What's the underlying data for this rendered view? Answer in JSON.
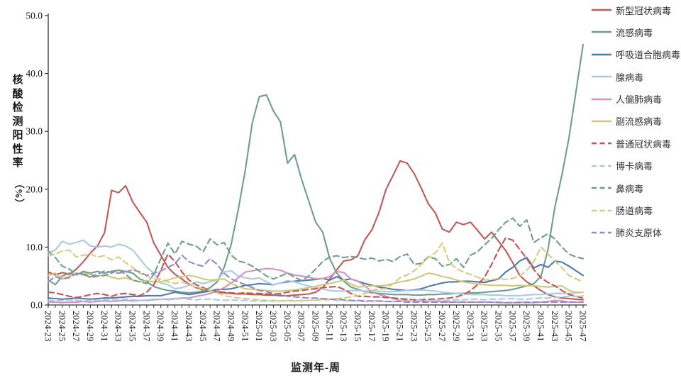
{
  "chart": {
    "ylabel_main": "核酸检测阳性率",
    "ylabel_unit": "（%）"
  },
  "chart_data": {
    "type": "line",
    "title": "",
    "xlabel": "监测年-周",
    "ylabel": "核酸检测阳性率（%）",
    "ylim": [
      0,
      50
    ],
    "yticks": [
      0,
      10,
      20,
      30,
      40,
      50
    ],
    "ytick_format": "one-decimal",
    "x_label_every": 2,
    "grid": false,
    "legend_position": "right",
    "x": [
      "2024-23",
      "2024-24",
      "2024-25",
      "2024-26",
      "2024-27",
      "2024-28",
      "2024-29",
      "2024-30",
      "2024-31",
      "2024-32",
      "2024-33",
      "2024-34",
      "2024-35",
      "2024-36",
      "2024-37",
      "2024-38",
      "2024-39",
      "2024-40",
      "2024-41",
      "2024-42",
      "2024-43",
      "2024-44",
      "2024-45",
      "2024-46",
      "2024-47",
      "2024-48",
      "2024-49",
      "2024-50",
      "2024-51",
      "2024-52",
      "2025-01",
      "2025-02",
      "2025-03",
      "2025-04",
      "2025-05",
      "2025-06",
      "2025-07",
      "2025-08",
      "2025-09",
      "2025-10",
      "2025-11",
      "2025-12",
      "2025-13",
      "2025-14",
      "2025-15",
      "2025-16",
      "2025-17",
      "2025-18",
      "2025-19",
      "2025-20",
      "2025-21",
      "2025-22",
      "2025-23",
      "2025-24",
      "2025-25",
      "2025-26",
      "2025-27",
      "2025-28",
      "2025-29",
      "2025-30",
      "2025-31",
      "2025-32",
      "2025-33",
      "2025-34",
      "2025-35",
      "2025-36",
      "2025-37",
      "2025-38",
      "2025-39",
      "2025-40",
      "2025-41",
      "2025-42",
      "2025-43",
      "2025-44",
      "2025-45",
      "2025-46",
      "2025-47"
    ],
    "series": [
      {
        "name": "新型冠状病毒",
        "color": "#C05A58",
        "dash": false,
        "values": [
          5.7,
          5.2,
          5.6,
          5.3,
          6.2,
          7.5,
          9.0,
          10.2,
          12.5,
          19.8,
          19.4,
          20.6,
          17.8,
          16.0,
          14.3,
          10.7,
          8.6,
          6.5,
          5.3,
          4.5,
          3.6,
          3.0,
          2.6,
          2.4,
          2.2,
          2.1,
          2.0,
          1.9,
          1.9,
          1.8,
          1.8,
          1.7,
          1.7,
          1.6,
          1.6,
          1.7,
          1.8,
          1.9,
          2.2,
          3.0,
          4.5,
          6.1,
          7.6,
          7.8,
          8.5,
          11.3,
          13.0,
          16.0,
          20.0,
          22.4,
          24.9,
          24.5,
          22.7,
          20.2,
          17.5,
          15.9,
          13.1,
          12.6,
          14.3,
          13.9,
          14.3,
          12.9,
          11.4,
          12.6,
          11.0,
          9.4,
          7.3,
          5.1,
          4.0,
          3.3,
          2.5,
          1.8,
          1.4,
          1.2,
          1.1,
          1.0,
          0.9
        ]
      },
      {
        "name": "流感病毒",
        "color": "#6E9F88",
        "dash": false,
        "values": [
          4.3,
          3.5,
          5.0,
          5.5,
          5.2,
          5.8,
          5.5,
          5.8,
          5.5,
          5.8,
          6.0,
          5.8,
          5.5,
          4.5,
          4.0,
          3.2,
          2.8,
          2.5,
          2.4,
          2.2,
          2.1,
          2.2,
          2.4,
          3.0,
          4.0,
          6.5,
          10.5,
          16.5,
          23.3,
          31.5,
          36.0,
          36.3,
          33.5,
          31.6,
          24.5,
          26.0,
          21.7,
          18.0,
          14.3,
          12.6,
          8.0,
          5.5,
          4.1,
          3.1,
          2.7,
          2.3,
          2.1,
          2.0,
          1.9,
          1.8,
          1.8,
          1.8,
          1.7,
          1.7,
          1.8,
          1.8,
          1.9,
          1.9,
          2.0,
          2.0,
          2.1,
          2.1,
          2.2,
          2.3,
          2.4,
          2.5,
          2.7,
          3.0,
          3.3,
          3.7,
          4.9,
          9.5,
          17.0,
          22.5,
          29.0,
          37.0,
          45.0
        ]
      },
      {
        "name": "呼吸道合胞病毒",
        "color": "#5079AD",
        "dash": false,
        "values": [
          1.2,
          1.1,
          1.0,
          1.1,
          1.2,
          1.1,
          1.0,
          1.1,
          1.2,
          1.2,
          1.3,
          1.4,
          1.5,
          1.5,
          1.6,
          1.6,
          1.6,
          1.9,
          2.2,
          2.0,
          1.8,
          2.0,
          2.2,
          2.4,
          2.7,
          2.7,
          2.8,
          3.1,
          3.4,
          3.5,
          3.7,
          3.6,
          3.5,
          3.8,
          4.0,
          4.1,
          4.2,
          4.3,
          4.4,
          4.6,
          4.3,
          4.9,
          4.3,
          4.5,
          4.1,
          3.7,
          3.4,
          3.1,
          2.9,
          2.7,
          2.6,
          2.5,
          2.6,
          2.8,
          3.2,
          3.5,
          3.8,
          4.0,
          4.0,
          4.1,
          4.1,
          4.0,
          3.9,
          4.2,
          4.5,
          5.7,
          6.5,
          7.6,
          8.2,
          6.4,
          7.0,
          6.5,
          7.6,
          7.4,
          6.7,
          5.9,
          5.1
        ]
      },
      {
        "name": "腺病毒",
        "color": "#A9CAE6",
        "dash": false,
        "values": [
          9.0,
          9.5,
          11.0,
          10.5,
          10.8,
          11.2,
          10.2,
          10.0,
          10.2,
          10.0,
          10.5,
          10.2,
          9.5,
          8.0,
          6.5,
          5.5,
          3.8,
          3.5,
          2.8,
          3.0,
          3.4,
          4.0,
          3.7,
          4.0,
          4.3,
          5.7,
          5.9,
          5.0,
          4.7,
          4.5,
          4.7,
          4.0,
          3.5,
          3.8,
          4.2,
          4.0,
          3.6,
          3.3,
          3.0,
          2.8,
          2.5,
          2.4,
          2.4,
          2.5,
          2.5,
          2.4,
          2.4,
          2.4,
          2.3,
          2.3,
          2.4,
          2.5,
          2.5,
          2.6,
          2.5,
          2.4,
          2.2,
          2.1,
          2.0,
          1.9,
          1.8,
          1.8,
          1.8,
          1.7,
          1.7,
          1.6,
          1.6,
          1.6,
          1.7,
          1.8,
          1.8,
          1.9,
          2.0,
          2.0,
          2.0,
          2.1,
          2.2
        ]
      },
      {
        "name": "人偏肺病毒",
        "color": "#D494C0",
        "dash": false,
        "values": [
          0.5,
          0.5,
          0.4,
          0.5,
          0.5,
          0.6,
          0.5,
          0.6,
          0.7,
          0.6,
          0.7,
          0.8,
          0.7,
          0.8,
          0.8,
          0.9,
          1.0,
          1.0,
          1.1,
          1.2,
          1.2,
          1.5,
          1.7,
          2.0,
          2.4,
          3.0,
          3.8,
          4.7,
          5.7,
          5.9,
          6.1,
          6.3,
          6.2,
          6.0,
          5.5,
          5.2,
          5.0,
          4.8,
          4.5,
          4.6,
          4.9,
          5.8,
          5.6,
          4.5,
          4.1,
          3.3,
          2.2,
          1.8,
          1.5,
          1.1,
          0.8,
          0.8,
          0.7,
          0.7,
          0.6,
          0.6,
          0.6,
          0.5,
          0.5,
          0.5,
          0.5,
          0.5,
          0.5,
          0.5,
          0.4,
          0.4,
          0.4,
          0.5,
          0.4,
          0.4,
          0.5,
          0.6,
          0.8,
          0.7,
          0.5,
          0.5,
          0.5
        ]
      },
      {
        "name": "副流感病毒",
        "color": "#CFC878",
        "dash": false,
        "values": [
          5.1,
          5.5,
          4.5,
          5.0,
          5.3,
          5.5,
          5.3,
          5.0,
          5.2,
          4.8,
          4.5,
          4.7,
          4.3,
          4.0,
          4.2,
          4.0,
          4.0,
          4.3,
          4.7,
          4.9,
          5.1,
          4.9,
          4.5,
          4.3,
          4.4,
          4.5,
          3.7,
          3.2,
          2.8,
          2.7,
          2.6,
          2.5,
          2.4,
          2.4,
          2.5,
          2.6,
          2.8,
          3.0,
          3.2,
          3.5,
          3.7,
          4.0,
          4.3,
          3.6,
          3.1,
          3.2,
          3.3,
          3.3,
          3.4,
          3.7,
          4.0,
          4.2,
          4.5,
          5.0,
          5.5,
          5.3,
          4.9,
          4.7,
          4.3,
          4.0,
          3.8,
          3.6,
          3.5,
          3.4,
          3.4,
          3.4,
          3.3,
          3.4,
          3.3,
          3.3,
          3.2,
          3.1,
          3.2,
          3.3,
          2.5,
          2.2,
          2.2
        ]
      },
      {
        "name": "普通冠状病毒",
        "color": "#C45553",
        "dash": true,
        "values": [
          2.2,
          2.1,
          1.8,
          1.5,
          1.3,
          1.5,
          1.8,
          2.0,
          1.8,
          1.5,
          1.9,
          2.0,
          1.8,
          1.6,
          2.2,
          3.5,
          6.0,
          8.8,
          7.5,
          5.7,
          4.3,
          3.5,
          3.0,
          2.5,
          2.3,
          2.2,
          2.1,
          2.0,
          2.1,
          2.0,
          2.0,
          1.9,
          1.9,
          2.0,
          2.2,
          2.4,
          2.5,
          2.7,
          2.8,
          3.0,
          3.1,
          3.2,
          2.7,
          2.0,
          1.5,
          1.5,
          1.4,
          1.4,
          1.3,
          1.2,
          1.1,
          1.0,
          0.9,
          0.9,
          1.0,
          1.0,
          1.1,
          1.2,
          1.4,
          1.8,
          2.5,
          3.5,
          4.8,
          7.0,
          9.5,
          11.6,
          11.2,
          9.6,
          8.0,
          6.1,
          4.7,
          3.9,
          3.3,
          2.5,
          1.8,
          1.5,
          1.2
        ]
      },
      {
        "name": "博卡病毒",
        "color": "#A9CAE6",
        "dash": true,
        "values": [
          0.8,
          0.7,
          0.8,
          0.9,
          0.8,
          0.7,
          0.8,
          0.8,
          0.9,
          0.8,
          0.9,
          1.0,
          0.9,
          0.8,
          0.9,
          1.0,
          1.0,
          0.9,
          1.0,
          1.1,
          1.0,
          0.9,
          1.0,
          1.0,
          0.9,
          0.8,
          0.9,
          0.8,
          0.8,
          0.7,
          0.7,
          0.6,
          0.7,
          0.7,
          0.8,
          0.8,
          0.7,
          0.8,
          0.8,
          0.9,
          0.9,
          0.8,
          0.8,
          0.7,
          0.7,
          0.6,
          0.7,
          0.7,
          0.6,
          0.6,
          0.7,
          0.7,
          0.8,
          0.8,
          0.7,
          0.7,
          0.8,
          0.8,
          0.9,
          0.9,
          1.0,
          1.0,
          0.9,
          1.0,
          1.0,
          1.1,
          1.1,
          1.0,
          1.0,
          1.1,
          1.2,
          1.2,
          1.3,
          1.4,
          1.5,
          1.5,
          1.6
        ]
      },
      {
        "name": "鼻病毒",
        "color": "#6E9F88",
        "dash": true,
        "values": [
          9.3,
          8.2,
          6.7,
          6.2,
          5.3,
          5.5,
          4.7,
          5.0,
          5.1,
          5.5,
          6.1,
          5.3,
          4.3,
          4.0,
          3.7,
          5.3,
          8.0,
          10.7,
          8.8,
          11.0,
          10.5,
          10.2,
          9.2,
          11.4,
          10.4,
          10.8,
          8.6,
          7.6,
          7.3,
          6.7,
          5.9,
          5.0,
          4.5,
          5.0,
          5.5,
          4.8,
          4.2,
          5.0,
          6.2,
          7.5,
          8.3,
          8.5,
          8.2,
          8.4,
          8.2,
          7.9,
          8.1,
          7.6,
          7.9,
          7.5,
          8.4,
          8.8,
          7.0,
          7.2,
          8.3,
          8.0,
          6.7,
          7.0,
          8.0,
          6.5,
          8.6,
          9.2,
          10.4,
          11.5,
          13.0,
          14.3,
          15.0,
          13.6,
          14.7,
          10.8,
          11.6,
          12.3,
          11.4,
          10.0,
          8.8,
          8.3,
          8.0
        ]
      },
      {
        "name": "肠道病毒",
        "color": "#D3CE7E",
        "dash": true,
        "values": [
          8.5,
          8.8,
          9.3,
          9.5,
          8.3,
          8.6,
          8.8,
          8.3,
          8.5,
          7.8,
          8.3,
          7.3,
          6.5,
          5.5,
          5.0,
          4.5,
          4.5,
          4.0,
          3.7,
          4.0,
          3.5,
          3.1,
          2.8,
          2.5,
          2.1,
          1.6,
          1.4,
          1.2,
          1.1,
          1.0,
          0.9,
          0.8,
          0.8,
          0.7,
          0.7,
          0.7,
          0.8,
          0.8,
          0.9,
          1.0,
          1.0,
          1.1,
          1.2,
          1.4,
          1.6,
          2.0,
          2.5,
          2.8,
          2.8,
          3.7,
          4.7,
          5.2,
          5.9,
          7.0,
          8.2,
          9.0,
          10.7,
          7.3,
          6.3,
          5.7,
          5.3,
          4.8,
          4.3,
          4.4,
          4.6,
          4.4,
          4.6,
          5.0,
          6.0,
          7.5,
          10.0,
          8.8,
          7.6,
          6.4,
          5.1,
          4.5,
          4.0
        ]
      },
      {
        "name": "肺炎支原体",
        "color": "#9A8AC2",
        "dash": true,
        "values": [
          4.0,
          4.9,
          4.5,
          4.7,
          5.5,
          5.2,
          4.9,
          5.3,
          5.9,
          5.6,
          5.5,
          5.7,
          6.1,
          5.7,
          5.1,
          5.5,
          5.9,
          6.5,
          7.1,
          8.6,
          7.5,
          7.0,
          6.7,
          8.0,
          7.0,
          5.5,
          4.5,
          4.0,
          3.5,
          3.0,
          2.5,
          2.3,
          2.0,
          1.8,
          1.5,
          1.4,
          1.3,
          1.2,
          1.2,
          1.1,
          1.0,
          1.0,
          0.9,
          0.8,
          0.8,
          0.7,
          0.7,
          0.7,
          0.6,
          0.6,
          0.6,
          0.5,
          0.5,
          0.5,
          0.5,
          0.5,
          0.5,
          0.5,
          0.5,
          0.5,
          0.5,
          0.5,
          0.5,
          0.5,
          0.5,
          0.4,
          0.4,
          0.4,
          0.5,
          0.5,
          0.5,
          0.5,
          0.5,
          0.5,
          0.5,
          0.5,
          0.5
        ]
      }
    ]
  }
}
